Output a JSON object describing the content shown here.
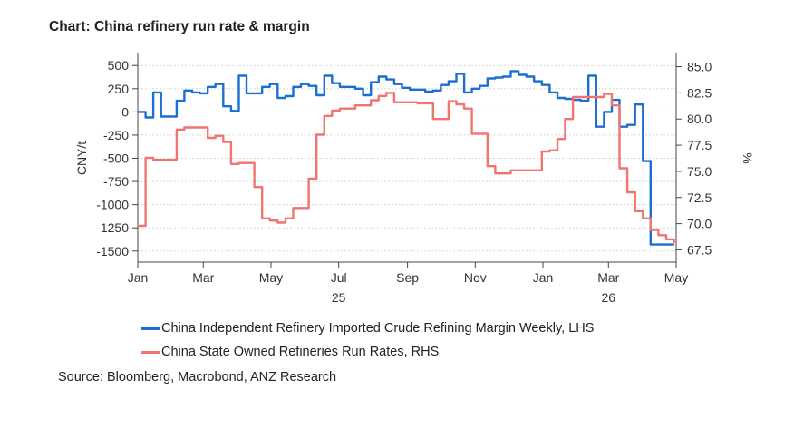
{
  "title": "Chart: China refinery run rate & margin",
  "source": "Source:  Bloomberg, Macrobond, ANZ Research",
  "colors": {
    "margin": "#1a6fd1",
    "runrate": "#f07470",
    "grid": "#d8d8d8",
    "axis": "#444444"
  },
  "chart_data": {
    "type": "line",
    "title": "Chart: China refinery run rate & margin",
    "xlabel": "",
    "ylabel": "CNY/t",
    "y2label": "%",
    "x_ticks": [
      "Jan",
      "Mar",
      "May",
      "Jul",
      "Sep",
      "Nov",
      "Jan",
      "Mar",
      "May"
    ],
    "x_year_labels": [
      {
        "label": "25",
        "under": "Jul"
      },
      {
        "label": "26",
        "under": "Mar"
      }
    ],
    "ylim": [
      -1600,
      600
    ],
    "y_ticks": [
      500,
      250,
      0,
      -250,
      -500,
      -750,
      -1000,
      -1250,
      -1500
    ],
    "y_tick_labels": [
      "500",
      "250",
      "0",
      "-250",
      "-500",
      "-750",
      "-1000",
      "-1250",
      "-1500"
    ],
    "y2lim": [
      66.5,
      86.0
    ],
    "y2_ticks": [
      85.0,
      82.5,
      80.0,
      77.5,
      75.0,
      72.5,
      70.0,
      67.5
    ],
    "y2_tick_labels": [
      "85.0",
      "82.5",
      "80.0",
      "77.5",
      "75.0",
      "72.5",
      "70.0",
      "67.5"
    ],
    "grid": true,
    "legend_position": "bottom",
    "series": [
      {
        "name": "China Independent Refinery Imported Crude Refining Margin Weekly, LHS",
        "axis": "left",
        "x": [
          "2025-01-01",
          "2025-01-08",
          "2025-01-15",
          "2025-01-22",
          "2025-01-29",
          "2025-02-05",
          "2025-02-12",
          "2025-02-19",
          "2025-02-26",
          "2025-03-05",
          "2025-03-12",
          "2025-03-19",
          "2025-03-26",
          "2025-04-02",
          "2025-04-09",
          "2025-04-16",
          "2025-04-23",
          "2025-04-30",
          "2025-05-07",
          "2025-05-14",
          "2025-05-21",
          "2025-05-28",
          "2025-06-04",
          "2025-06-11",
          "2025-06-18",
          "2025-06-25",
          "2025-07-02",
          "2025-07-09",
          "2025-07-16",
          "2025-07-23",
          "2025-07-30",
          "2025-08-06",
          "2025-08-13",
          "2025-08-20",
          "2025-08-27",
          "2025-09-03",
          "2025-09-10",
          "2025-09-17",
          "2025-09-24",
          "2025-10-01",
          "2025-10-08",
          "2025-10-15",
          "2025-10-22",
          "2025-10-29",
          "2025-11-05",
          "2025-11-12",
          "2025-11-19",
          "2025-11-26",
          "2025-12-03",
          "2025-12-10",
          "2025-12-17",
          "2025-12-24",
          "2025-12-31",
          "2026-01-07",
          "2026-01-14",
          "2026-01-21",
          "2026-01-28",
          "2026-02-04",
          "2026-02-11",
          "2026-02-18",
          "2026-02-25",
          "2026-03-04",
          "2026-03-11",
          "2026-03-18",
          "2026-03-25",
          "2026-04-01",
          "2026-04-08",
          "2026-04-15",
          "2026-04-22",
          "2026-04-29"
        ],
        "values": [
          0,
          -60,
          210,
          -50,
          -50,
          120,
          230,
          210,
          200,
          270,
          300,
          60,
          10,
          390,
          200,
          200,
          270,
          300,
          150,
          170,
          270,
          300,
          280,
          180,
          390,
          310,
          270,
          270,
          250,
          180,
          320,
          380,
          350,
          300,
          260,
          240,
          240,
          220,
          230,
          290,
          330,
          410,
          210,
          250,
          280,
          360,
          370,
          380,
          440,
          400,
          380,
          330,
          290,
          210,
          150,
          140,
          130,
          120,
          390,
          -160,
          0,
          130,
          -160,
          -140,
          80,
          -530,
          -1430,
          -1430,
          -1430,
          -1430
        ]
      },
      {
        "name": "China State Owned Refineries Run Rates, RHS",
        "axis": "right",
        "x": [
          "2025-01-01",
          "2025-01-08",
          "2025-01-15",
          "2025-01-22",
          "2025-01-29",
          "2025-02-05",
          "2025-02-12",
          "2025-02-19",
          "2025-02-26",
          "2025-03-05",
          "2025-03-12",
          "2025-03-19",
          "2025-03-26",
          "2025-04-02",
          "2025-04-09",
          "2025-04-16",
          "2025-04-23",
          "2025-04-30",
          "2025-05-07",
          "2025-05-14",
          "2025-05-21",
          "2025-05-28",
          "2025-06-04",
          "2025-06-11",
          "2025-06-18",
          "2025-06-25",
          "2025-07-02",
          "2025-07-09",
          "2025-07-16",
          "2025-07-23",
          "2025-07-30",
          "2025-08-06",
          "2025-08-13",
          "2025-08-20",
          "2025-08-27",
          "2025-09-03",
          "2025-09-10",
          "2025-09-17",
          "2025-09-24",
          "2025-10-01",
          "2025-10-08",
          "2025-10-15",
          "2025-10-22",
          "2025-10-29",
          "2025-11-05",
          "2025-11-12",
          "2025-11-19",
          "2025-11-26",
          "2025-12-03",
          "2025-12-10",
          "2025-12-17",
          "2025-12-24",
          "2025-12-31",
          "2026-01-07",
          "2026-01-14",
          "2026-01-21",
          "2026-01-28",
          "2026-02-04",
          "2026-02-11",
          "2026-02-18",
          "2026-02-25",
          "2026-03-04",
          "2026-03-11",
          "2026-03-18",
          "2026-03-25",
          "2026-04-01",
          "2026-04-08",
          "2026-04-15",
          "2026-04-22",
          "2026-04-29"
        ],
        "values": [
          69.8,
          76.3,
          76.1,
          76.1,
          76.1,
          79.0,
          79.2,
          79.2,
          79.2,
          78.2,
          78.4,
          77.8,
          75.7,
          75.8,
          75.8,
          73.5,
          70.5,
          70.3,
          70.1,
          70.5,
          71.5,
          71.5,
          74.3,
          78.5,
          80.3,
          80.8,
          81.0,
          81.0,
          81.3,
          81.3,
          81.8,
          82.2,
          82.5,
          81.6,
          81.6,
          81.6,
          81.5,
          81.5,
          80.0,
          80.0,
          81.7,
          81.4,
          81.0,
          78.6,
          78.6,
          75.5,
          74.8,
          74.8,
          75.1,
          75.1,
          75.1,
          75.1,
          76.9,
          77.0,
          78.1,
          80.0,
          82.1,
          82.1,
          82.1,
          82.1,
          82.4,
          81.3,
          75.3,
          73.0,
          71.2,
          70.5,
          69.4,
          68.9,
          68.5,
          68.1
        ]
      }
    ]
  }
}
